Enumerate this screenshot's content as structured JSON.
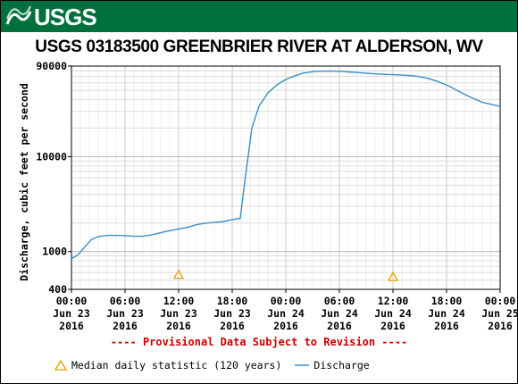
{
  "header": {
    "logo_text": "USGS"
  },
  "chart_data": {
    "type": "line",
    "title": "USGS 03183500 GREENBRIER RIVER AT ALDERSON, WV",
    "ylabel": "Discharge, cubic feet per second",
    "y_scale": "log",
    "ylim": [
      400,
      90000
    ],
    "y_ticks": [
      {
        "value": 400,
        "label": "400"
      },
      {
        "value": 1000,
        "label": "1000"
      },
      {
        "value": 10000,
        "label": "10000"
      },
      {
        "value": 90000,
        "label": "90000"
      }
    ],
    "x_hours_range": [
      0,
      48
    ],
    "x_ticks": [
      {
        "hours": 0,
        "l1": "00:00",
        "l2": "Jun 23",
        "l3": "2016"
      },
      {
        "hours": 6,
        "l1": "06:00",
        "l2": "Jun 23",
        "l3": "2016"
      },
      {
        "hours": 12,
        "l1": "12:00",
        "l2": "Jun 23",
        "l3": "2016"
      },
      {
        "hours": 18,
        "l1": "18:00",
        "l2": "Jun 23",
        "l3": "2016"
      },
      {
        "hours": 24,
        "l1": "00:00",
        "l2": "Jun 24",
        "l3": "2016"
      },
      {
        "hours": 30,
        "l1": "06:00",
        "l2": "Jun 24",
        "l3": "2016"
      },
      {
        "hours": 36,
        "l1": "12:00",
        "l2": "Jun 24",
        "l3": "2016"
      },
      {
        "hours": 42,
        "l1": "18:00",
        "l2": "Jun 24",
        "l3": "2016"
      },
      {
        "hours": 48,
        "l1": "00:00",
        "l2": "Jun 25",
        "l3": "2016"
      }
    ],
    "grid": true,
    "series": [
      {
        "name": "Discharge",
        "color": "#3b8fc4",
        "points": [
          [
            0,
            840
          ],
          [
            0.75,
            930
          ],
          [
            1.5,
            1120
          ],
          [
            2.25,
            1340
          ],
          [
            3,
            1440
          ],
          [
            4,
            1480
          ],
          [
            5,
            1480
          ],
          [
            6,
            1470
          ],
          [
            7,
            1450
          ],
          [
            8,
            1450
          ],
          [
            9,
            1500
          ],
          [
            10,
            1580
          ],
          [
            11,
            1660
          ],
          [
            12,
            1730
          ],
          [
            13,
            1800
          ],
          [
            14,
            1920
          ],
          [
            15,
            1990
          ],
          [
            16,
            2030
          ],
          [
            17,
            2070
          ],
          [
            18,
            2170
          ],
          [
            18.9,
            2240
          ],
          [
            19.4,
            5400
          ],
          [
            20.2,
            20000
          ],
          [
            21,
            34000
          ],
          [
            22,
            47000
          ],
          [
            23,
            57000
          ],
          [
            24,
            65000
          ],
          [
            25,
            71000
          ],
          [
            26,
            76000
          ],
          [
            27,
            78500
          ],
          [
            28,
            79500
          ],
          [
            29,
            79800
          ],
          [
            30,
            79400
          ],
          [
            31,
            78200
          ],
          [
            32,
            77000
          ],
          [
            33,
            75700
          ],
          [
            34,
            74600
          ],
          [
            35,
            73800
          ],
          [
            36,
            73100
          ],
          [
            37,
            72400
          ],
          [
            38,
            71500
          ],
          [
            39,
            69500
          ],
          [
            40,
            66500
          ],
          [
            41,
            62000
          ],
          [
            42,
            57000
          ],
          [
            43,
            51000
          ],
          [
            44,
            45500
          ],
          [
            45,
            41000
          ],
          [
            46,
            37500
          ],
          [
            47,
            35500
          ],
          [
            48,
            34000
          ]
        ]
      },
      {
        "name": "Median daily statistic (120 years)",
        "color": "#e8a000",
        "marker": "triangle",
        "points": [
          [
            12,
            570
          ],
          [
            36,
            540
          ]
        ]
      }
    ],
    "legend_placement": "bottom",
    "notice": "---- Provisional Data Subject to Revision ----"
  }
}
